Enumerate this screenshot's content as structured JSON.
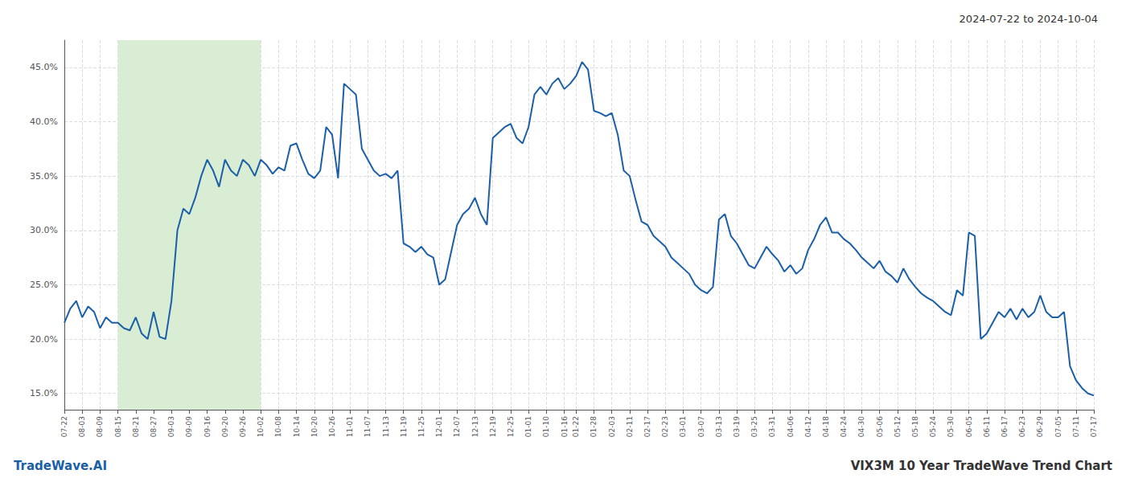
{
  "chart_data": {
    "type": "line",
    "title": "VIX3M 10 Year TradeWave Trend Chart",
    "subtitle": "2024-07-22 to 2024-10-04",
    "annotations": [
      "TradeWave.AI"
    ],
    "color": "#1a5fa8",
    "grid": true,
    "ylim": [
      13.5,
      47.5
    ],
    "yticks": [
      {
        "value": 15.0,
        "label": "15.0%"
      },
      {
        "value": 20.0,
        "label": "20.0%"
      },
      {
        "value": 25.0,
        "label": "25.0%"
      },
      {
        "value": 30.0,
        "label": "30.0%"
      },
      {
        "value": 35.0,
        "label": "35.0%"
      },
      {
        "value": 40.0,
        "label": "40.0%"
      },
      {
        "value": 45.0,
        "label": "45.0%"
      }
    ],
    "highlight": {
      "from": "08-15",
      "to": "10-02",
      "color": "#d8edd4"
    },
    "categories": [
      "07-22",
      null,
      null,
      "08-03",
      null,
      null,
      "08-09",
      null,
      null,
      "08-15",
      null,
      null,
      "08-21",
      null,
      null,
      "08-27",
      null,
      null,
      "09-03",
      null,
      null,
      "09-09",
      null,
      null,
      "09-16",
      null,
      null,
      "09-20",
      null,
      null,
      "09-26",
      null,
      null,
      "10-02",
      null,
      null,
      "10-08",
      null,
      null,
      "10-14",
      null,
      null,
      "10-20",
      null,
      null,
      "10-26",
      null,
      null,
      "11-01",
      null,
      null,
      "11-07",
      null,
      null,
      "11-13",
      null,
      null,
      "11-19",
      null,
      null,
      "11-25",
      null,
      null,
      "12-01",
      null,
      null,
      "12-07",
      null,
      null,
      "12-13",
      null,
      null,
      "12-19",
      null,
      null,
      "12-25",
      null,
      null,
      "01-01",
      null,
      null,
      "01-10",
      null,
      null,
      "01-16",
      null,
      "01-22",
      null,
      null,
      "01-28",
      null,
      null,
      "02-03",
      null,
      null,
      "02-11",
      null,
      null,
      "02-17",
      null,
      null,
      "02-23",
      null,
      null,
      "03-01",
      null,
      null,
      "03-07",
      null,
      null,
      "03-13",
      null,
      null,
      "03-19",
      null,
      null,
      "03-25",
      null,
      null,
      "03-31",
      null,
      null,
      "04-06",
      null,
      null,
      "04-12",
      null,
      null,
      "04-18",
      null,
      null,
      "04-24",
      null,
      null,
      "04-30",
      null,
      null,
      "05-06",
      null,
      null,
      "05-12",
      null,
      null,
      "05-18",
      null,
      null,
      "05-24",
      null,
      null,
      "05-30",
      null,
      null,
      "06-05",
      null,
      null,
      "06-11",
      null,
      null,
      "06-17",
      null,
      null,
      "06-23",
      null,
      null,
      "06-29",
      null,
      null,
      "07-05",
      null,
      null,
      "07-11",
      null,
      null,
      "07-17"
    ],
    "values": [
      21.5,
      22.8,
      23.5,
      22.0,
      23.0,
      22.5,
      21.0,
      22.0,
      21.5,
      21.5,
      21.0,
      20.8,
      22.0,
      20.5,
      20.0,
      22.5,
      20.2,
      20.0,
      23.5,
      30.0,
      32.0,
      31.5,
      33.0,
      35.0,
      36.5,
      35.5,
      34.0,
      36.5,
      35.5,
      35.0,
      36.5,
      36.0,
      35.0,
      36.5,
      36.0,
      35.2,
      35.8,
      35.5,
      37.8,
      38.0,
      36.5,
      35.2,
      34.8,
      35.5,
      39.5,
      38.8,
      34.8,
      43.5,
      43.0,
      42.5,
      37.5,
      36.5,
      35.5,
      35.0,
      35.2,
      34.8,
      35.5,
      28.8,
      28.5,
      28.0,
      28.5,
      27.8,
      27.5,
      25.0,
      25.5,
      28.0,
      30.5,
      31.5,
      32.0,
      33.0,
      31.5,
      30.5,
      38.5,
      39.0,
      39.5,
      39.8,
      38.5,
      38.0,
      39.5,
      42.5,
      43.2,
      42.5,
      43.5,
      44.0,
      43.0,
      43.5,
      44.2,
      45.5,
      44.8,
      41.0,
      40.8,
      40.5,
      40.8,
      38.8,
      35.5,
      35.0,
      32.8,
      30.8,
      30.5,
      29.5,
      29.0,
      28.5,
      27.5,
      27.0,
      26.5,
      26.0,
      25.0,
      24.5,
      24.2,
      24.8,
      31.0,
      31.5,
      29.5,
      28.8,
      27.8,
      26.8,
      26.5,
      27.5,
      28.5,
      27.8,
      27.2,
      26.2,
      26.8,
      26.0,
      26.5,
      28.2,
      29.2,
      30.5,
      31.2,
      29.8,
      29.8,
      29.2,
      28.8,
      28.2,
      27.5,
      27.0,
      26.5,
      27.2,
      26.2,
      25.8,
      25.2,
      26.5,
      25.5,
      24.8,
      24.2,
      23.8,
      23.5,
      23.0,
      22.5,
      22.2,
      24.5,
      24.0,
      29.8,
      29.5,
      20.0,
      20.5,
      21.5,
      22.5,
      22.0,
      22.8,
      21.8,
      22.8,
      22.0,
      22.5,
      24.0,
      22.5,
      22.0,
      22.0,
      22.5,
      17.5,
      16.2,
      15.5,
      15.0,
      14.8
    ]
  }
}
